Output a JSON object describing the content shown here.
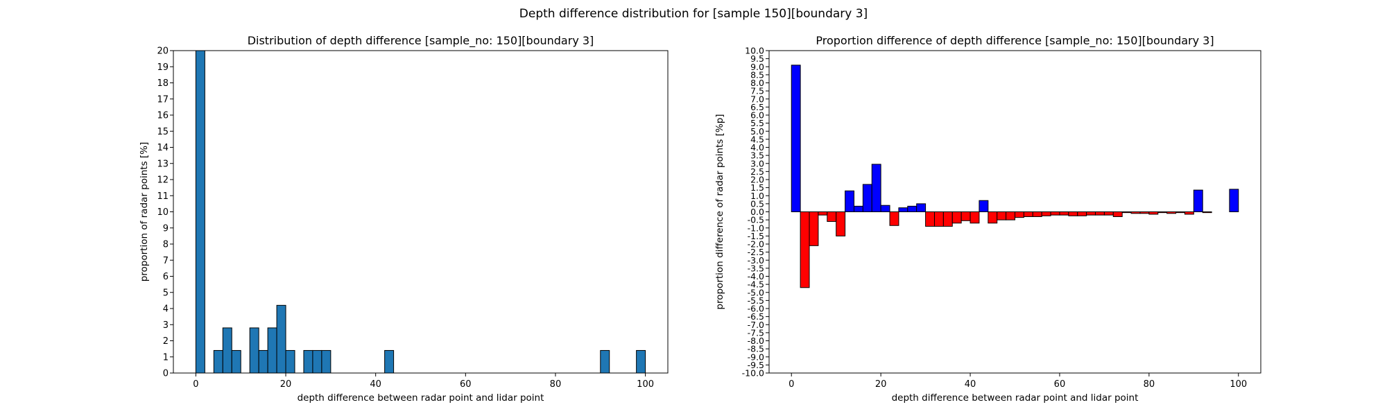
{
  "figure": {
    "title": "Depth difference distribution for [sample 150][boundary 3]"
  },
  "chart_data": [
    {
      "type": "bar",
      "title": "Distribution of depth difference [sample_no: 150][boundary 3]",
      "xlabel": "depth difference between radar point and lidar point",
      "ylabel": "proportion of radar points [%]",
      "xlim": [
        -5,
        105
      ],
      "ylim": [
        0,
        20
      ],
      "bin_width": 2,
      "bar_color": "#1f77b4",
      "edge_color": "#000000",
      "x_ticks": [
        0,
        20,
        40,
        60,
        80,
        100
      ],
      "x_tick_labels": [
        "0",
        "20",
        "40",
        "60",
        "80",
        "100"
      ],
      "y_ticks": [
        0,
        1,
        2,
        3,
        4,
        5,
        6,
        7,
        8,
        9,
        10,
        11,
        12,
        13,
        14,
        15,
        16,
        17,
        18,
        19,
        20
      ],
      "y_tick_labels": [
        "0",
        "1",
        "2",
        "3",
        "4",
        "5",
        "6",
        "7",
        "8",
        "9",
        "10",
        "11",
        "12",
        "13",
        "14",
        "15",
        "16",
        "17",
        "18",
        "19",
        "20"
      ],
      "series": [
        {
          "bin_starts": [
            0,
            4,
            6,
            8,
            12,
            14,
            16,
            18,
            20,
            24,
            26,
            28,
            42,
            90,
            98
          ],
          "values": [
            20.5,
            1.4,
            2.8,
            1.4,
            2.8,
            1.4,
            2.8,
            4.2,
            1.4,
            1.4,
            1.4,
            1.4,
            1.4,
            1.4,
            1.4
          ]
        }
      ]
    },
    {
      "type": "bar",
      "title": "Proportion difference of depth difference [sample_no: 150][boundary 3]",
      "xlabel": "depth difference between radar point and lidar point",
      "ylabel": "proportion difference of radar points [%p]",
      "xlim": [
        -5,
        105
      ],
      "ylim": [
        -10,
        10
      ],
      "bin_width": 2,
      "positive_color": "#0000ff",
      "negative_color": "#ff0000",
      "edge_color": "#000000",
      "x_ticks": [
        0,
        20,
        40,
        60,
        80,
        100
      ],
      "x_tick_labels": [
        "0",
        "20",
        "40",
        "60",
        "80",
        "100"
      ],
      "y_ticks": [
        10,
        9.5,
        9,
        8.5,
        8,
        7.5,
        7,
        6.5,
        6,
        5.5,
        5,
        4.5,
        4,
        3.5,
        3,
        2.5,
        2,
        1.5,
        1,
        0.5,
        0,
        -0.5,
        -1,
        -1.5,
        -2,
        -2.5,
        -3,
        -3.5,
        -4,
        -4.5,
        -5,
        -5.5,
        -6,
        -6.5,
        -7,
        -7.5,
        -8,
        -8.5,
        -9,
        -9.5,
        -10
      ],
      "y_tick_labels": [
        "10.0",
        "9.5",
        "9.0",
        "8.5",
        "8.0",
        "7.5",
        "7.0",
        "6.5",
        "6.0",
        "5.5",
        "5.0",
        "4.5",
        "4.0",
        "3.5",
        "3.0",
        "2.5",
        "2.0",
        "1.5",
        "1.0",
        "0.5",
        "0.0",
        "-0.5",
        "-1.0",
        "-1.5",
        "-2.0",
        "-2.5",
        "-3.0",
        "-3.5",
        "-4.0",
        "-4.5",
        "-5.0",
        "-5.5",
        "-6.0",
        "-6.5",
        "-7.0",
        "-7.5",
        "-8.0",
        "-8.5",
        "-9.0",
        "-9.5",
        "-10.0"
      ],
      "series": [
        {
          "bin_starts": [
            0,
            2,
            4,
            6,
            8,
            10,
            12,
            14,
            16,
            18,
            20,
            22,
            24,
            26,
            28,
            30,
            32,
            34,
            36,
            38,
            40,
            42,
            44,
            46,
            48,
            50,
            52,
            54,
            56,
            58,
            60,
            62,
            64,
            66,
            68,
            70,
            72,
            74,
            76,
            78,
            80,
            82,
            84,
            86,
            88,
            90,
            92,
            94,
            96,
            98
          ],
          "values": [
            9.1,
            -4.7,
            -2.1,
            -0.2,
            -0.6,
            -1.5,
            1.3,
            0.35,
            1.7,
            2.95,
            0.4,
            -0.85,
            0.25,
            0.35,
            0.5,
            -0.9,
            -0.9,
            -0.9,
            -0.7,
            -0.55,
            -0.7,
            0.7,
            -0.7,
            -0.5,
            -0.5,
            -0.35,
            -0.3,
            -0.3,
            -0.25,
            -0.2,
            -0.2,
            -0.25,
            -0.25,
            -0.2,
            -0.2,
            -0.2,
            -0.3,
            -0.05,
            -0.1,
            -0.1,
            -0.15,
            -0.05,
            -0.1,
            -0.05,
            -0.15,
            1.35,
            -0.05,
            0,
            0,
            1.4
          ]
        }
      ]
    }
  ]
}
